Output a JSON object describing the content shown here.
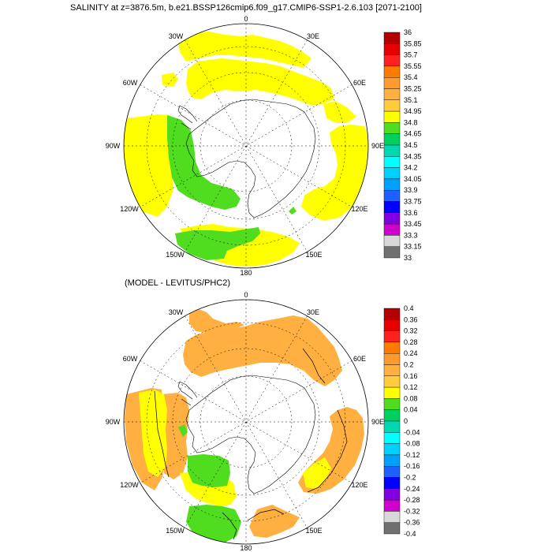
{
  "top_panel": {
    "title": "SALINITY at z=3876.5m, b.e21.BSSP126cmip6.f09_g17.CMIP6-SSP1-2.6.103 [2071-2100]",
    "lon_labels": [
      "0",
      "30E",
      "60E",
      "90E",
      "120E",
      "150E",
      "180",
      "150W",
      "120W",
      "90W",
      "60W",
      "30W"
    ],
    "colorbar": {
      "labels": [
        "36",
        "35.85",
        "35.7",
        "35.55",
        "35.4",
        "35.25",
        "35.1",
        "34.95",
        "34.8",
        "34.65",
        "34.5",
        "34.35",
        "34.2",
        "34.05",
        "33.9",
        "33.75",
        "33.6",
        "33.45",
        "33.3",
        "33.15",
        "33"
      ],
      "colors": [
        "#b40000",
        "#e60000",
        "#ff2020",
        "#ff7a00",
        "#ff9a30",
        "#ffb040",
        "#ffcc40",
        "#ffff00",
        "#50dd20",
        "#00d060",
        "#00d8b0",
        "#00ffff",
        "#00d0ff",
        "#00a0ff",
        "#2060ff",
        "#0000ff",
        "#8000e0",
        "#d000d0",
        "#d8d8d8",
        "#707070"
      ]
    }
  },
  "bottom_panel": {
    "title": "(MODEL - LEVITUS/PHC2)",
    "lon_labels": [
      "0",
      "30E",
      "60E",
      "90E",
      "120E",
      "150E",
      "180",
      "150W",
      "120W",
      "90W",
      "60W",
      "30W"
    ],
    "colorbar": {
      "labels": [
        "0.4",
        "0.36",
        "0.32",
        "0.28",
        "0.24",
        "0.2",
        "0.16",
        "0.12",
        "0.08",
        "0.04",
        "0",
        "-0.04",
        "-0.08",
        "-0.12",
        "-0.16",
        "-0.2",
        "-0.24",
        "-0.28",
        "-0.32",
        "-0.36",
        "-0.4"
      ],
      "colors": [
        "#b40000",
        "#e60000",
        "#ff2020",
        "#ff7a00",
        "#ff9a30",
        "#ffb040",
        "#ffcc40",
        "#ffff00",
        "#50dd20",
        "#00d060",
        "#00d8b0",
        "#00ffff",
        "#00d0ff",
        "#00a0ff",
        "#2060ff",
        "#0000ff",
        "#8000e0",
        "#d000d0",
        "#d8d8d8",
        "#707070"
      ]
    }
  }
}
